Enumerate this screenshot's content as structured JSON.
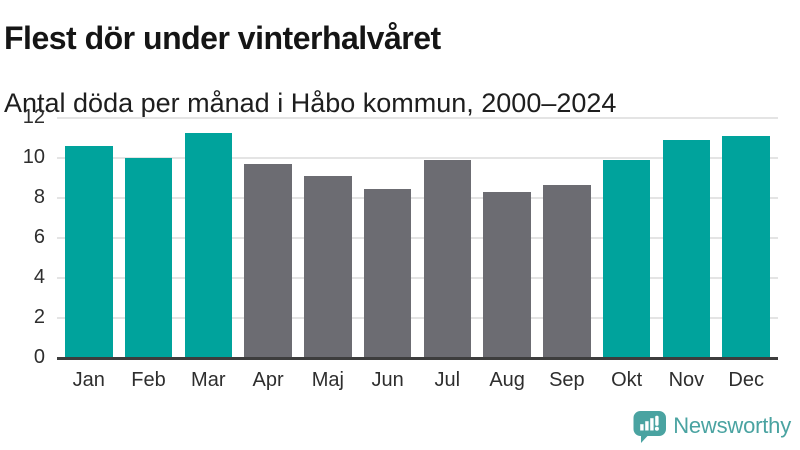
{
  "header": {
    "title": "Flest dör under vinterhalvåret",
    "subtitle": "Antal döda per månad i Håbo kommun, 2000–2024"
  },
  "chart_data": {
    "type": "bar",
    "title": "Flest dör under vinterhalvåret",
    "subtitle": "Antal döda per månad i Håbo kommun, 2000–2024",
    "categories": [
      "Jan",
      "Feb",
      "Mar",
      "Apr",
      "Maj",
      "Jun",
      "Jul",
      "Aug",
      "Sep",
      "Okt",
      "Nov",
      "Dec"
    ],
    "values": [
      10.6,
      10.0,
      11.25,
      9.7,
      9.1,
      8.45,
      9.9,
      8.3,
      8.65,
      9.9,
      10.9,
      11.1
    ],
    "bar_colors": [
      "#00a39c",
      "#00a39c",
      "#00a39c",
      "#6c6c72",
      "#6c6c72",
      "#6c6c72",
      "#6c6c72",
      "#6c6c72",
      "#6c6c72",
      "#00a39c",
      "#00a39c",
      "#00a39c"
    ],
    "highlight_color": "#00a39c",
    "default_color": "#6c6c72",
    "highlighted_categories": [
      "Jan",
      "Feb",
      "Mar",
      "Okt",
      "Nov",
      "Dec"
    ],
    "xlabel": "",
    "ylabel": "",
    "ylim": [
      0,
      12
    ],
    "yticks": [
      0,
      2,
      4,
      6,
      8,
      10,
      12
    ],
    "grid": true,
    "legend": false,
    "gridline_color": "#e4e4e4",
    "axis_line_color": "#3d3d3d"
  },
  "footer": {
    "brand": "Newsworthy",
    "brand_color": "#4aa3a1",
    "logo_icon": "newsworthy-speech-bubble-bar-chart-icon"
  }
}
